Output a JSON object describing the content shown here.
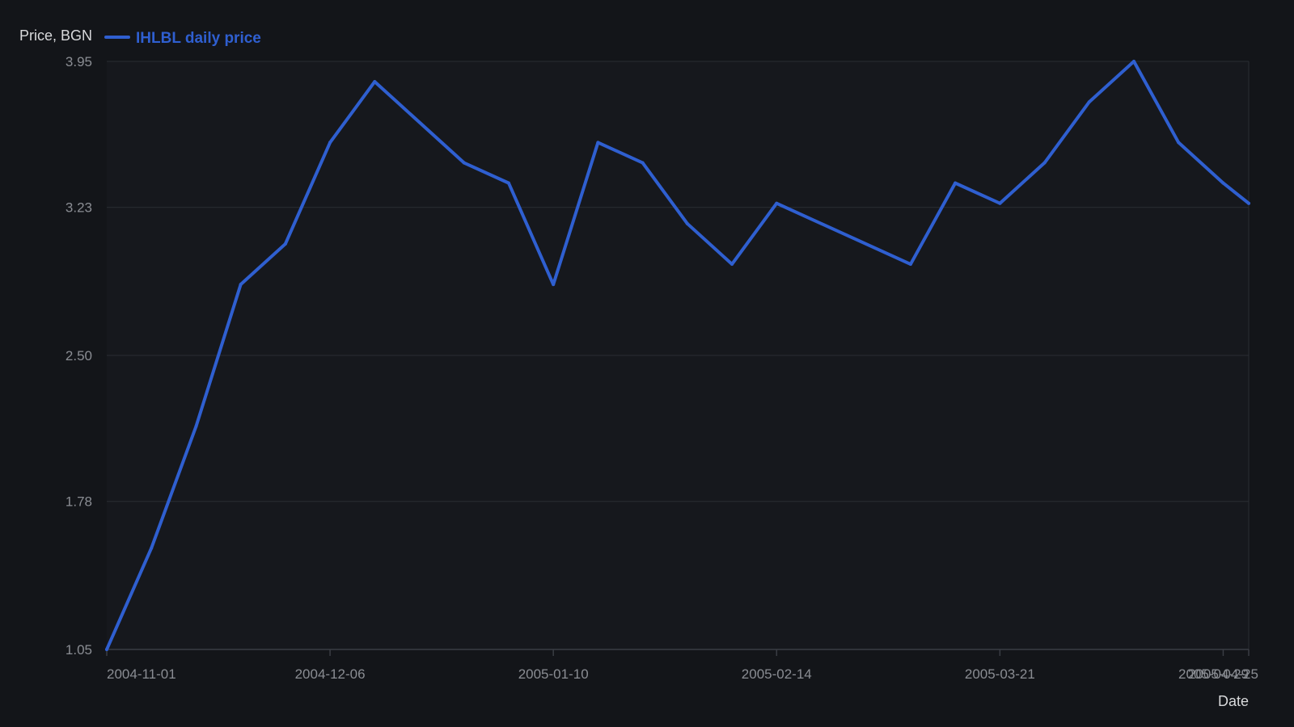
{
  "chart_data": {
    "type": "line",
    "title": "",
    "xlabel": "Date",
    "ylabel": "Price, BGN",
    "legend": {
      "placement": "top-left",
      "entries": [
        "IHLBL daily price"
      ]
    },
    "ylim": [
      1.05,
      3.95
    ],
    "xlim": [
      "2004-11-01",
      "2005-04-29"
    ],
    "y_ticks": [
      "1.05",
      "1.78",
      "2.50",
      "3.23",
      "3.95"
    ],
    "x_ticks": [
      "2004-11-01",
      "2004-12-06",
      "2005-01-10",
      "2005-02-14",
      "2005-03-21",
      "2005-04-25",
      "2005-04-29"
    ],
    "grid": true,
    "series": [
      {
        "name": "IHLBL daily price",
        "color": "#2f5fd0",
        "points": [
          {
            "x": "2004-11-01",
            "y": 1.05
          },
          {
            "x": "2004-11-08",
            "y": 1.55
          },
          {
            "x": "2004-11-15",
            "y": 2.15
          },
          {
            "x": "2004-11-22",
            "y": 2.85
          },
          {
            "x": "2004-11-29",
            "y": 3.05
          },
          {
            "x": "2004-12-06",
            "y": 3.55
          },
          {
            "x": "2004-12-13",
            "y": 3.85
          },
          {
            "x": "2004-12-27",
            "y": 3.45
          },
          {
            "x": "2005-01-03",
            "y": 3.35
          },
          {
            "x": "2005-01-10",
            "y": 2.85
          },
          {
            "x": "2005-01-17",
            "y": 3.55
          },
          {
            "x": "2005-01-24",
            "y": 3.45
          },
          {
            "x": "2005-01-31",
            "y": 3.15
          },
          {
            "x": "2005-02-07",
            "y": 2.95
          },
          {
            "x": "2005-02-14",
            "y": 3.25
          },
          {
            "x": "2005-03-07",
            "y": 2.95
          },
          {
            "x": "2005-03-14",
            "y": 3.35
          },
          {
            "x": "2005-03-21",
            "y": 3.25
          },
          {
            "x": "2005-03-28",
            "y": 3.45
          },
          {
            "x": "2005-04-04",
            "y": 3.75
          },
          {
            "x": "2005-04-11",
            "y": 3.95
          },
          {
            "x": "2005-04-18",
            "y": 3.55
          },
          {
            "x": "2005-04-25",
            "y": 3.35
          },
          {
            "x": "2005-04-29",
            "y": 3.25
          }
        ]
      }
    ]
  },
  "colors": {
    "background": "#131519",
    "plot_background": "#16181d",
    "grid": "#2a2d33",
    "axis": "#3a3d44",
    "tick_text": "#8a8d93",
    "label_text": "#d8d9db",
    "series": "#2f5fd0"
  }
}
